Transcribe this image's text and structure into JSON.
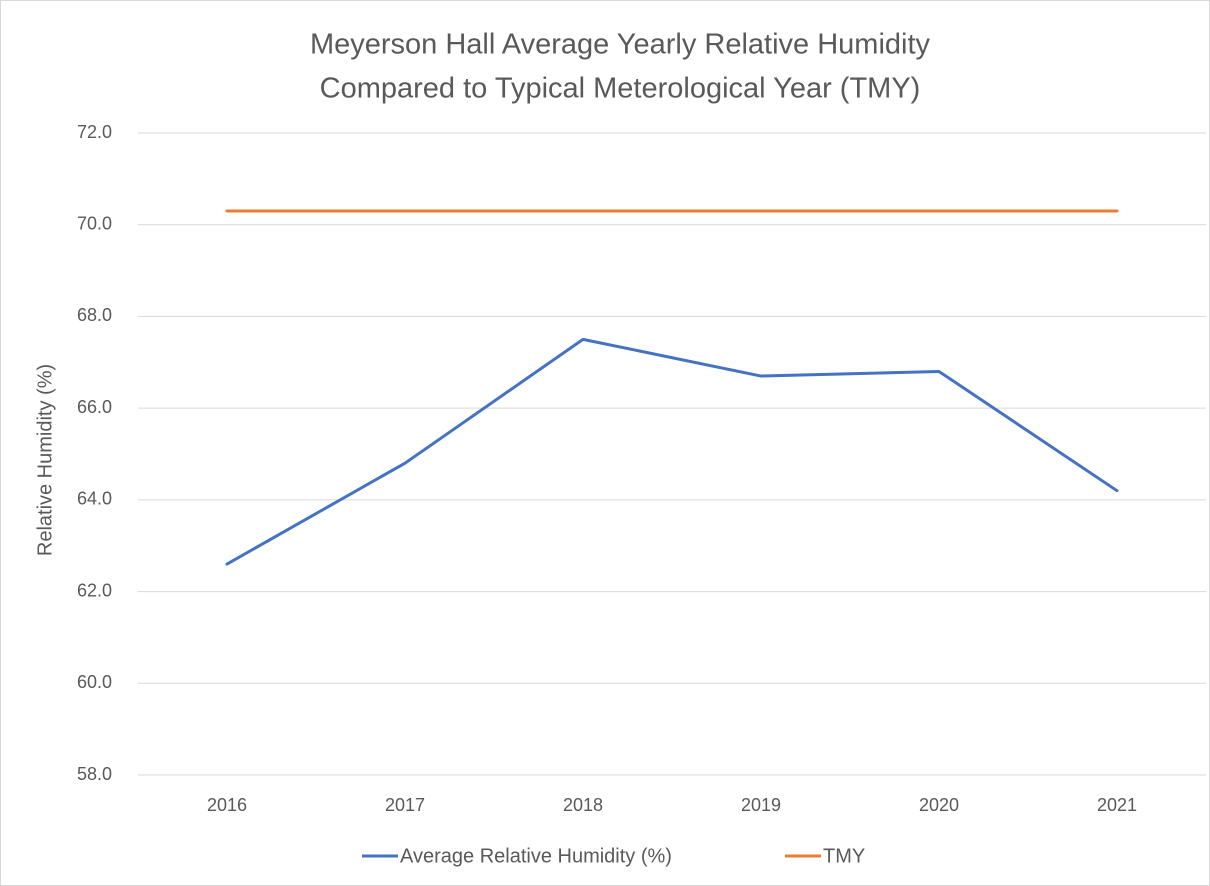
{
  "chart_data": {
    "type": "line",
    "title": [
      "Meyerson Hall Average Yearly Relative Humidity",
      "Compared to Typical Meterological Year (TMY)"
    ],
    "y_label": "Relative Humidity (%)",
    "categories": [
      "2016",
      "2017",
      "2018",
      "2019",
      "2020",
      "2021"
    ],
    "series": [
      {
        "name": "Average Relative Humidity (%)",
        "color": "#4472c4",
        "values": [
          62.6,
          64.8,
          67.5,
          66.7,
          66.8,
          64.2
        ]
      },
      {
        "name": "TMY",
        "color": "#ed7d31",
        "values": [
          70.3,
          70.3,
          70.3,
          70.3,
          70.3,
          70.3
        ]
      }
    ],
    "ylim": [
      58,
      72
    ],
    "yticks": [
      {
        "value": 58,
        "label": "58.0"
      },
      {
        "value": 60,
        "label": "60.0"
      },
      {
        "value": 62,
        "label": "62.0"
      },
      {
        "value": 64,
        "label": "64.0"
      },
      {
        "value": 66,
        "label": "66.0"
      },
      {
        "value": 68,
        "label": "68.0"
      },
      {
        "value": 70,
        "label": "70.0"
      },
      {
        "value": 72,
        "label": "72.0"
      }
    ],
    "grid": true,
    "legend": "bottom"
  }
}
